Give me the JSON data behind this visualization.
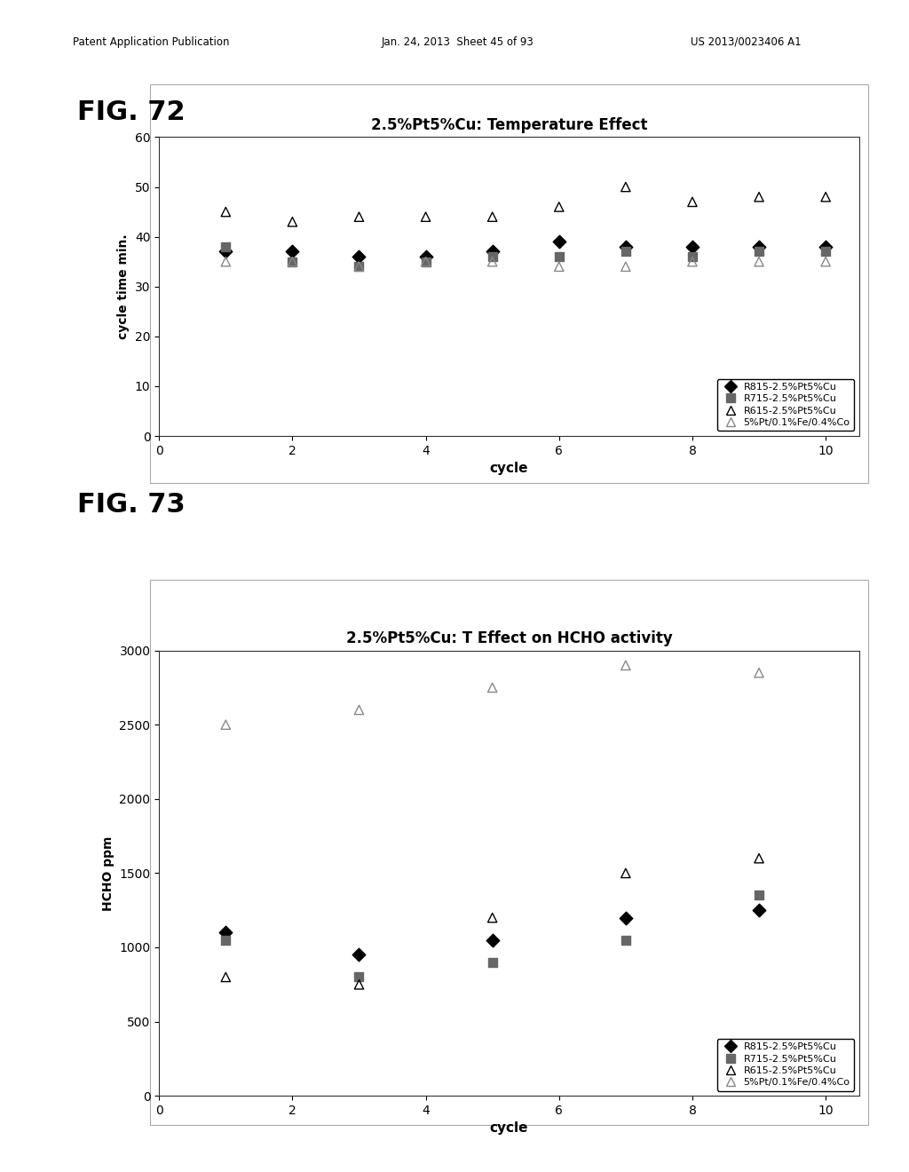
{
  "fig72": {
    "title": "2.5%Pt5%Cu: Temperature Effect",
    "xlabel": "cycle",
    "ylabel": "cycle time min.",
    "xlim": [
      0,
      10.5
    ],
    "ylim": [
      0,
      60
    ],
    "yticks": [
      0,
      10,
      20,
      30,
      40,
      50,
      60
    ],
    "xticks": [
      0,
      2,
      4,
      6,
      8,
      10
    ],
    "series": {
      "R815": {
        "x": [
          1,
          2,
          3,
          4,
          5,
          6,
          7,
          8,
          9,
          10
        ],
        "y": [
          37,
          37,
          36,
          36,
          37,
          39,
          38,
          38,
          38,
          38
        ],
        "marker": "D",
        "color": "#000000",
        "filled": true,
        "label": "R815-2.5%Pt5%Cu"
      },
      "R715": {
        "x": [
          1,
          2,
          3,
          4,
          5,
          6,
          7,
          8,
          9,
          10
        ],
        "y": [
          38,
          35,
          34,
          35,
          36,
          36,
          37,
          36,
          37,
          37
        ],
        "marker": "s",
        "color": "#666666",
        "filled": true,
        "label": "R715-2.5%Pt5%Cu"
      },
      "R615": {
        "x": [
          1,
          2,
          3,
          4,
          5,
          6,
          7,
          8,
          9,
          10
        ],
        "y": [
          45,
          43,
          44,
          44,
          44,
          46,
          50,
          47,
          48,
          48
        ],
        "marker": "^",
        "color": "#000000",
        "filled": false,
        "label": "R615-2.5%Pt5%Cu"
      },
      "ref": {
        "x": [
          1,
          2,
          3,
          4,
          5,
          6,
          7,
          8,
          9,
          10
        ],
        "y": [
          35,
          35,
          34,
          35,
          35,
          34,
          34,
          35,
          35,
          35
        ],
        "marker": "^",
        "color": "#888888",
        "filled": false,
        "label": "5%Pt/0.1%Fe/0.4%Co"
      }
    }
  },
  "fig73": {
    "title": "2.5%Pt5%Cu: T Effect on HCHO activity",
    "xlabel": "cycle",
    "ylabel": "HCHO ppm",
    "xlim": [
      0,
      10.5
    ],
    "ylim": [
      0,
      3000
    ],
    "yticks": [
      0,
      500,
      1000,
      1500,
      2000,
      2500,
      3000
    ],
    "xticks": [
      0,
      2,
      4,
      6,
      8,
      10
    ],
    "series": {
      "R815": {
        "x": [
          1,
          3,
          5,
          7,
          9
        ],
        "y": [
          1100,
          950,
          1050,
          1200,
          1250
        ],
        "marker": "D",
        "color": "#000000",
        "filled": true,
        "label": "R815-2.5%Pt5%Cu"
      },
      "R715": {
        "x": [
          1,
          3,
          5,
          7,
          9
        ],
        "y": [
          1050,
          800,
          900,
          1050,
          1350
        ],
        "marker": "s",
        "color": "#666666",
        "filled": true,
        "label": "R715-2.5%Pt5%Cu"
      },
      "R615": {
        "x": [
          1,
          3,
          5,
          7,
          9
        ],
        "y": [
          800,
          750,
          1200,
          1500,
          1600
        ],
        "marker": "^",
        "color": "#000000",
        "filled": false,
        "label": "R615-2.5%Pt5%Cu"
      },
      "ref": {
        "x": [
          1,
          3,
          5,
          7,
          9
        ],
        "y": [
          2500,
          2600,
          2750,
          2900,
          2850
        ],
        "marker": "^",
        "color": "#888888",
        "filled": false,
        "label": "5%Pt/0.1%Fe/0.4%Co"
      }
    }
  },
  "background_color": "#ffffff",
  "header_left": "Patent Application Publication",
  "header_mid": "Jan. 24, 2013  Sheet 45 of 93",
  "header_right": "US 2013/0023406 A1",
  "fig72_label": "FIG. 72",
  "fig73_label": "FIG. 73"
}
